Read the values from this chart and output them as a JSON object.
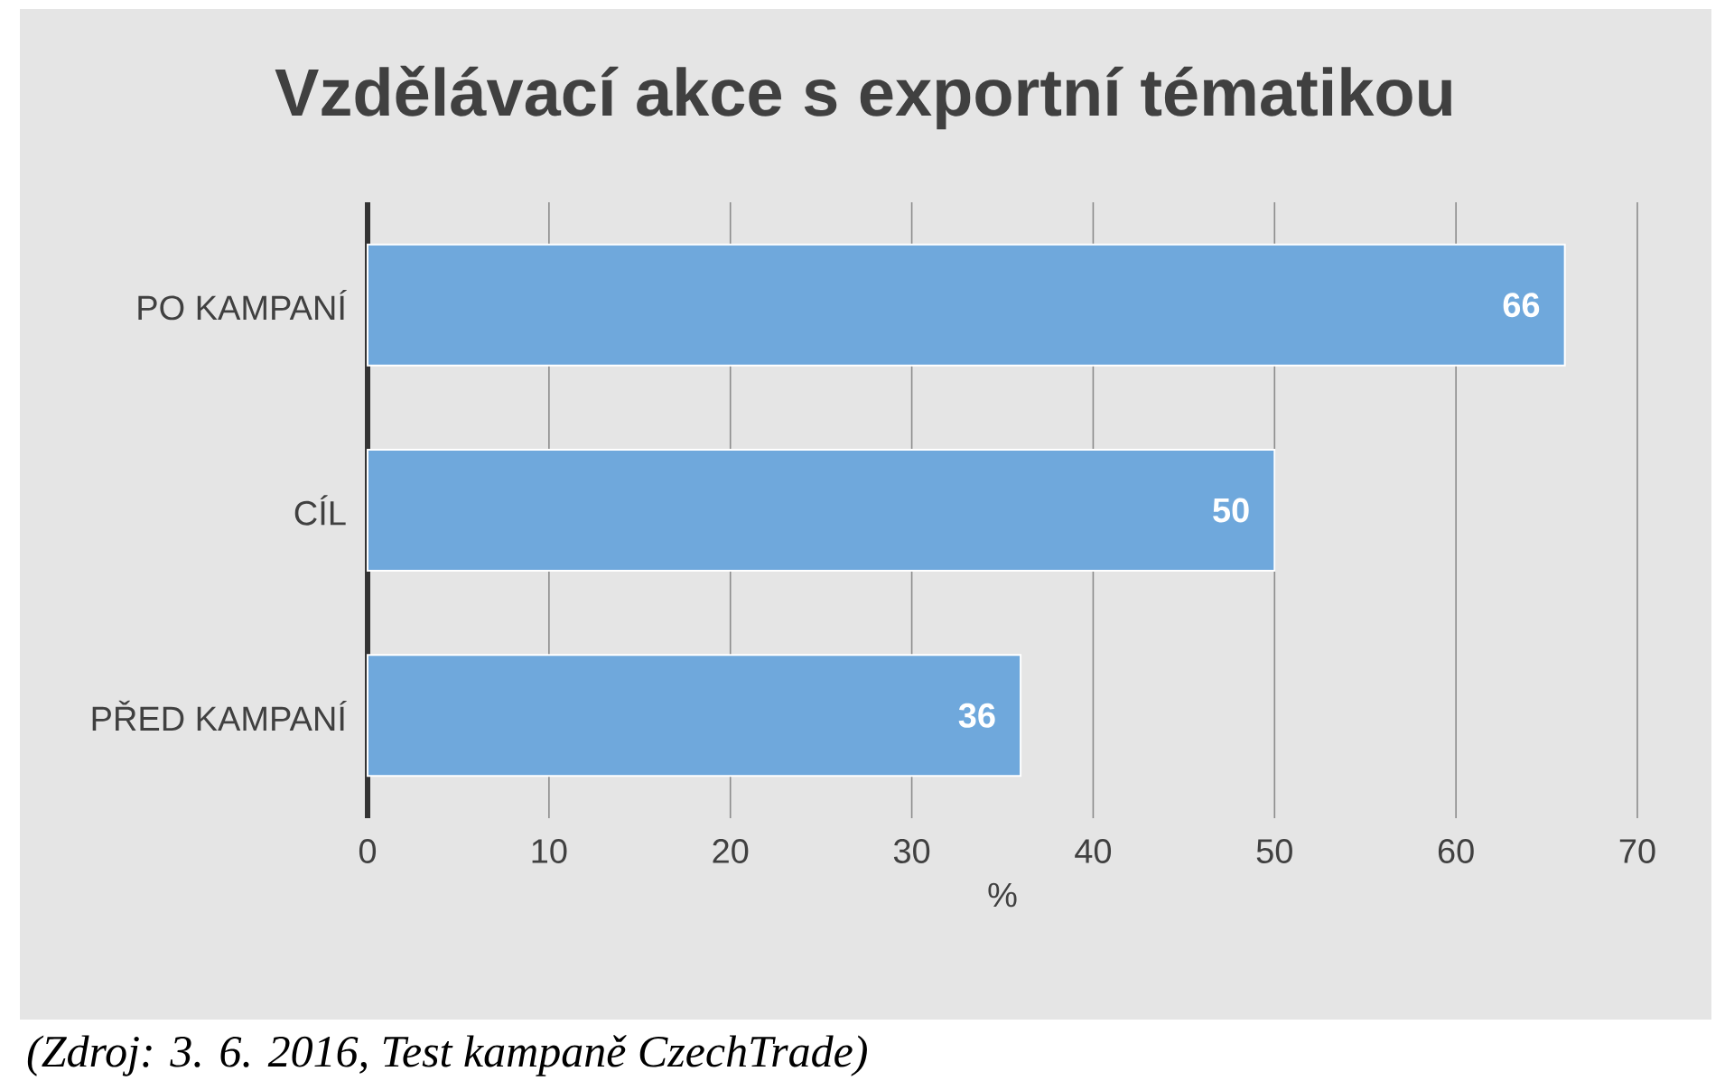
{
  "chart_data": {
    "type": "bar",
    "orientation": "horizontal",
    "title": "Vzdělávací akce s exportní tématikou",
    "xlabel": "%",
    "categories": [
      "PO KAMPANÍ",
      "CÍL",
      "PŘED KAMPANÍ"
    ],
    "values": [
      66,
      50,
      36
    ],
    "color": "#6fa8dc",
    "xlim": [
      0,
      70
    ],
    "xticks": [
      0,
      10,
      20,
      30,
      40,
      50,
      60,
      70
    ],
    "grid": "x",
    "data_labels": true,
    "annotations": [
      "(Zdroj: 3. 6. 2016, Test kampaně CzechTrade)"
    ]
  }
}
